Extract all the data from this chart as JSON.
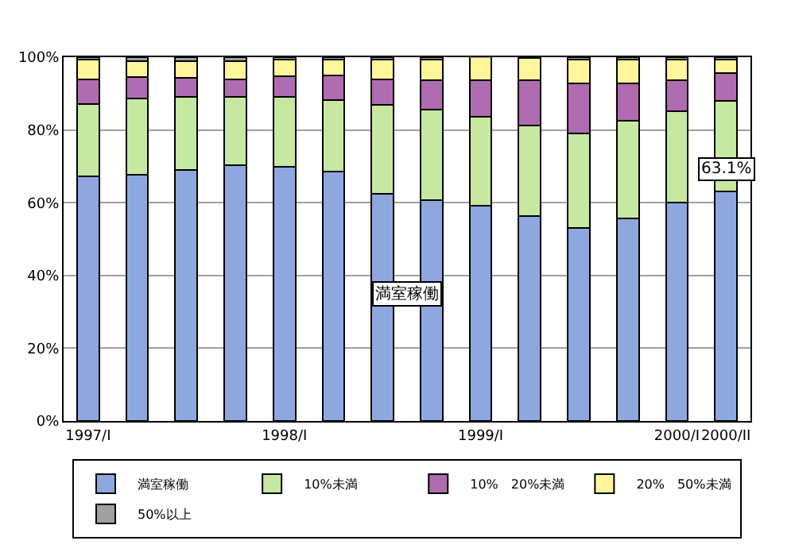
{
  "chart_data": {
    "type": "bar",
    "stacked": true,
    "categories": [
      "1997/I",
      null,
      null,
      null,
      "1998/I",
      null,
      null,
      null,
      "1999/I",
      null,
      null,
      null,
      "2000/I",
      "2000/II"
    ],
    "series": [
      {
        "name": "満室稼働",
        "color": "#8ea7de",
        "values": [
          67.2,
          67.7,
          69.1,
          70.3,
          69.9,
          68.6,
          62.4,
          60.8,
          59.1,
          56.3,
          53.1,
          55.6,
          60.0,
          63.1
        ],
        "value_labels": [
          null,
          null,
          null,
          null,
          null,
          null,
          null,
          null,
          null,
          null,
          null,
          null,
          null,
          "63.1%"
        ]
      },
      {
        "name": "10%未満",
        "color": "#c6e8a0",
        "values": [
          20.0,
          20.9,
          20.0,
          18.8,
          19.2,
          19.6,
          24.5,
          24.9,
          24.6,
          24.9,
          25.9,
          26.9,
          25.2,
          25.0
        ]
      },
      {
        "name": "10%　20%未満",
        "color": "#b06cb0",
        "values": [
          6.7,
          5.9,
          5.2,
          4.8,
          5.7,
          6.7,
          7.0,
          7.9,
          9.9,
          12.4,
          13.7,
          10.2,
          8.4,
          7.5
        ]
      },
      {
        "name": "20%　50%未満",
        "color": "#fff59a",
        "values": [
          5.4,
          4.5,
          4.7,
          5.1,
          4.5,
          4.4,
          5.4,
          5.7,
          6.4,
          6.1,
          6.6,
          6.6,
          5.7,
          3.7
        ]
      },
      {
        "name": "50%以上",
        "color": "#a0a0a0",
        "values": [
          0.7,
          1.0,
          1.0,
          1.0,
          0.7,
          0.7,
          0.7,
          0.7,
          0.0,
          0.3,
          0.7,
          0.7,
          0.7,
          0.7
        ]
      }
    ],
    "ylim": [
      0,
      100
    ],
    "yticks": [
      {
        "value": 0,
        "label": "0%"
      },
      {
        "value": 20,
        "label": "20%"
      },
      {
        "value": 40,
        "label": "40%"
      },
      {
        "value": 60,
        "label": "60%"
      },
      {
        "value": 80,
        "label": "80%"
      },
      {
        "value": 100,
        "label": "100%"
      }
    ],
    "annotations": [
      {
        "text": "満室稼働",
        "y": 35
      }
    ],
    "grid": "y",
    "legend": "bottom"
  }
}
